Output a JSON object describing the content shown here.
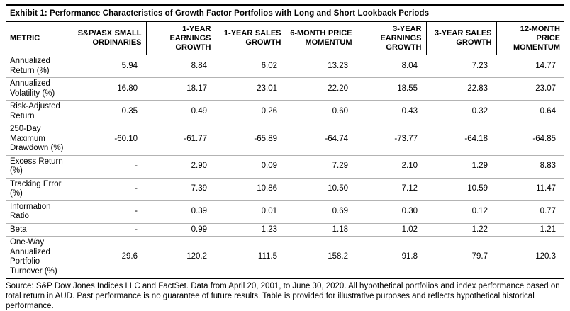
{
  "title": "Exhibit 1: Performance Characteristics of Growth Factor Portfolios with Long and Short Lookback Periods",
  "table": {
    "metric_header": "METRIC",
    "columns": [
      "S&P/ASX SMALL ORDINARIES",
      "1-YEAR EARNINGS GROWTH",
      "1-YEAR SALES GROWTH",
      "6-MONTH PRICE MOMENTUM",
      "3-YEAR EARNINGS GROWTH",
      "3-YEAR SALES GROWTH",
      "12-MONTH PRICE MOMENTUM"
    ],
    "rows": [
      {
        "metric": "Annualized Return (%)",
        "values": [
          "5.94",
          "8.84",
          "6.02",
          "13.23",
          "8.04",
          "7.23",
          "14.77"
        ]
      },
      {
        "metric": "Annualized Volatility (%)",
        "values": [
          "16.80",
          "18.17",
          "23.01",
          "22.20",
          "18.55",
          "22.83",
          "23.07"
        ]
      },
      {
        "metric": "Risk-Adjusted Return",
        "values": [
          "0.35",
          "0.49",
          "0.26",
          "0.60",
          "0.43",
          "0.32",
          "0.64"
        ]
      },
      {
        "metric": "250-Day Maximum Drawdown (%)",
        "values": [
          "-60.10",
          "-61.77",
          "-65.89",
          "-64.74",
          "-73.77",
          "-64.18",
          "-64.85"
        ]
      },
      {
        "metric": "Excess Return (%)",
        "values": [
          "-",
          "2.90",
          "0.09",
          "7.29",
          "2.10",
          "1.29",
          "8.83"
        ]
      },
      {
        "metric": "Tracking Error (%)",
        "values": [
          "-",
          "7.39",
          "10.86",
          "10.50",
          "7.12",
          "10.59",
          "11.47"
        ]
      },
      {
        "metric": "Information Ratio",
        "values": [
          "-",
          "0.39",
          "0.01",
          "0.69",
          "0.30",
          "0.12",
          "0.77"
        ]
      },
      {
        "metric": "Beta",
        "values": [
          "-",
          "0.99",
          "1.23",
          "1.18",
          "1.02",
          "1.22",
          "1.21"
        ]
      },
      {
        "metric": "One-Way Annualized Portfolio Turnover (%)",
        "values": [
          "29.6",
          "120.2",
          "111.5",
          "158.2",
          "91.8",
          "79.7",
          "120.3"
        ]
      }
    ]
  },
  "footnote": "Source: S&P Dow Jones Indices LLC and FactSet. Data from April 20, 2001, to June 30, 2020. All hypothetical portfolios and index performance based on total return in AUD. Past performance is no guarantee of future results. Table is provided for illustrative purposes and reflects hypothetical historical performance."
}
